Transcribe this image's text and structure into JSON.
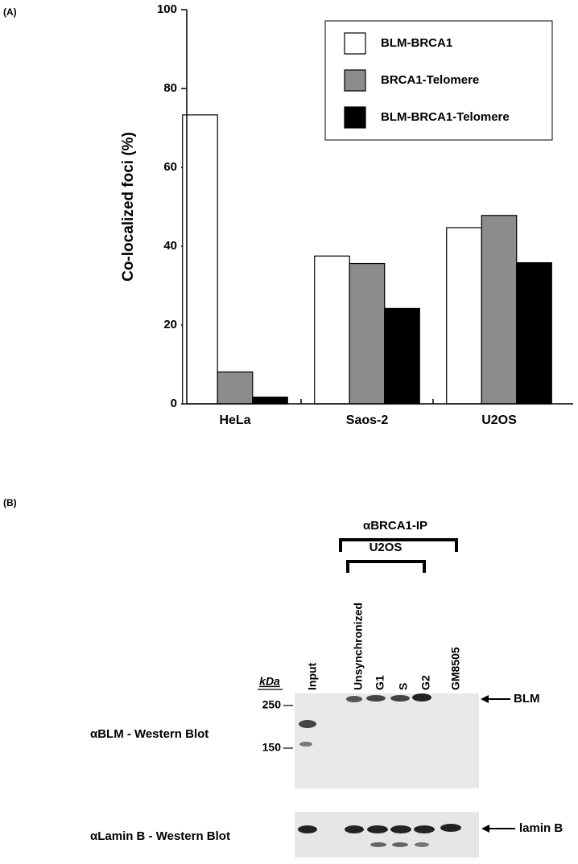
{
  "chart_data": {
    "type": "bar",
    "ylabel": "Co-localized foci (%)",
    "categories": [
      "HeLa",
      "Saos-2",
      "U2OS"
    ],
    "series": [
      {
        "name": "BLM-BRCA1",
        "color": "#ffffff",
        "values": [
          73.3,
          37.5,
          44.7
        ]
      },
      {
        "name": "BRCA1-Telomere",
        "color": "#8c8c8c",
        "values": [
          8.1,
          35.6,
          47.8
        ]
      },
      {
        "name": "BLM-BRCA1-Telomere",
        "color": "#000000",
        "values": [
          1.7,
          24.2,
          35.8
        ]
      }
    ],
    "ylim": [
      0,
      100
    ],
    "yticks": [
      0,
      20,
      40,
      60,
      80,
      100
    ],
    "grid": false,
    "legend": "upper right"
  },
  "panels": [
    "(A)",
    "(B)"
  ],
  "blot": {
    "ip_label": "αBRCA1-IP",
    "cell_label": "U2OS",
    "lanes": [
      "Input",
      "Unsynchronized",
      "G1",
      "S",
      "G2",
      "GM8505"
    ],
    "kda_label": "kDa",
    "markers": [
      "250",
      "150"
    ],
    "blot_labels": [
      "αBLM - Western Blot",
      "αLamin B - Western Blot"
    ],
    "band_labels": [
      "BLM",
      "lamin B"
    ]
  }
}
